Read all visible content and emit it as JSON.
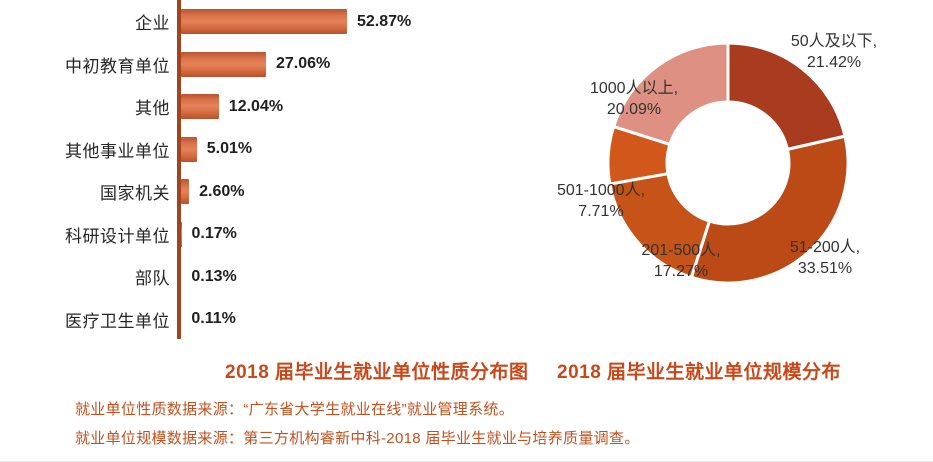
{
  "chart_data": [
    {
      "type": "bar",
      "orientation": "horizontal",
      "title": "2018 届毕业生就业单位性质分布图",
      "categories": [
        "企业",
        "中初教育单位",
        "其他",
        "其他事业单位",
        "国家机关",
        "科研设计单位",
        "部队",
        "医疗卫生单位"
      ],
      "values": [
        52.87,
        27.06,
        12.04,
        5.01,
        2.6,
        0.17,
        0.13,
        0.11
      ],
      "value_labels": [
        "52.87%",
        "27.06%",
        "12.04%",
        "5.01%",
        "2.60%",
        "0.17%",
        "0.13%",
        "0.11%"
      ],
      "unit": "%",
      "xlim": [
        0,
        60
      ],
      "grid": false,
      "legend": false,
      "bar_color": "#D86F46",
      "axis_color": "#A2451E"
    },
    {
      "type": "pie",
      "donut": true,
      "title": "2018 届毕业生就业单位规模分布",
      "labels": [
        "50人及以下",
        "51-200人",
        "201-500人",
        "501-1000人",
        "1000人以上"
      ],
      "values": [
        21.42,
        33.51,
        17.27,
        7.71,
        20.09
      ],
      "value_labels": [
        "21.42%",
        "33.51%",
        "17.27%",
        "7.71%",
        "20.09%"
      ],
      "colors": [
        "#A93B1E",
        "#BC4A16",
        "#C65318",
        "#D2571A",
        "#DE9182"
      ],
      "start_angle_deg": 0,
      "direction": "clockwise",
      "inner_radius_ratio": 0.51,
      "legend": false
    }
  ],
  "footnotes": [
    "就业单位性质数据来源：“广东省大学生就业在线”就业管理系统。",
    "就业单位规模数据来源：第三方机构睿新中科-2018 届毕业生就业与培养质量调查。"
  ],
  "colors": {
    "title_text": "#C7491A",
    "footnote_text": "#C1511F",
    "bar_value_text": "#1f1f1f",
    "category_text": "#262626",
    "donut_label_text": "#333333",
    "background": "#ffffff"
  }
}
